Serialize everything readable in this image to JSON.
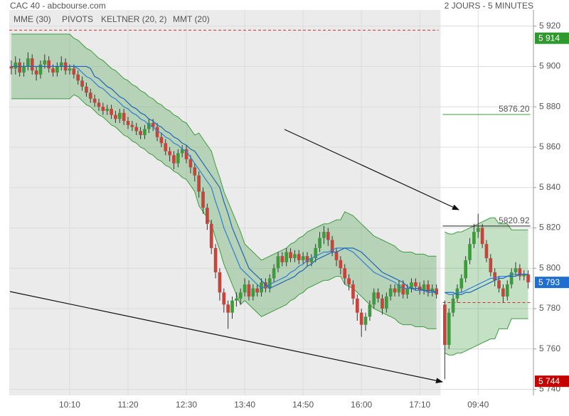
{
  "chart_data": {
    "type": "candlestick",
    "title": "CAC 40 - abcbourse.com",
    "subtitle": "2 JOURS - 5 MINUTES",
    "up_color": "#3d9a3d",
    "down_color": "#c5453c",
    "grid": true,
    "ylim": [
      5737,
      5928
    ],
    "yticks": [
      {
        "value": 5740,
        "label": "5 740"
      },
      {
        "value": 5760,
        "label": "5 760"
      },
      {
        "value": 5780,
        "label": "5 780"
      },
      {
        "value": 5800,
        "label": "5 800"
      },
      {
        "value": 5820,
        "label": "5 820"
      },
      {
        "value": 5840,
        "label": "5 840"
      },
      {
        "value": 5860,
        "label": "5 860"
      },
      {
        "value": 5880,
        "label": "5 880"
      },
      {
        "value": 5900,
        "label": "5 900"
      },
      {
        "value": 5920,
        "label": "5 920"
      }
    ],
    "categories": [
      null,
      null,
      null,
      null,
      null,
      null,
      null,
      null,
      null,
      null,
      null,
      null,
      null,
      null,
      "10:10",
      null,
      null,
      null,
      null,
      null,
      null,
      null,
      null,
      null,
      null,
      null,
      null,
      null,
      "11:20",
      null,
      null,
      null,
      null,
      null,
      null,
      null,
      null,
      null,
      null,
      null,
      null,
      null,
      "12:30",
      null,
      null,
      null,
      null,
      null,
      null,
      null,
      null,
      null,
      null,
      null,
      null,
      null,
      "13:40",
      null,
      null,
      null,
      null,
      null,
      null,
      null,
      null,
      null,
      null,
      null,
      null,
      null,
      "14:50",
      null,
      null,
      null,
      null,
      null,
      null,
      null,
      null,
      null,
      null,
      null,
      null,
      null,
      "16:00",
      null,
      null,
      null,
      null,
      null,
      null,
      null,
      null,
      null,
      null,
      null,
      null,
      null,
      "17:10",
      null,
      null,
      null,
      null,
      null,
      null,
      null,
      null,
      null,
      null,
      null,
      null,
      null,
      "09:40",
      null,
      null,
      null,
      null,
      null,
      null,
      null,
      null,
      null,
      null,
      null,
      null
    ],
    "open": [
      5900,
      5899,
      5902,
      5897,
      5900,
      5904,
      5898,
      5896,
      5901,
      5903,
      5899,
      5897,
      5900,
      5902,
      5898,
      5899,
      5896,
      5893,
      5890,
      5887,
      5884,
      5882,
      5880,
      5878,
      5879,
      5876,
      5874,
      5877,
      5873,
      5871,
      5870,
      5868,
      5866,
      5869,
      5872,
      5870,
      5865,
      5862,
      5858,
      5856,
      5852,
      5857,
      5859,
      5854,
      5850,
      5846,
      5838,
      5830,
      5822,
      5810,
      5798,
      5788,
      5782,
      5778,
      5784,
      5785,
      5788,
      5792,
      5786,
      5790,
      5788,
      5793,
      5790,
      5795,
      5800,
      5806,
      5803,
      5808,
      5805,
      5807,
      5804,
      5806,
      5803,
      5805,
      5810,
      5815,
      5818,
      5814,
      5808,
      5804,
      5800,
      5795,
      5792,
      5785,
      5778,
      5772,
      5776,
      5782,
      5788,
      5785,
      5780,
      5786,
      5790,
      5788,
      5792,
      5787,
      5790,
      5793,
      5791,
      5789,
      5792,
      5788,
      5790,
      null,
      5782,
      5762,
      5778,
      5785,
      5790,
      5795,
      5804,
      5812,
      5818,
      5820,
      5812,
      5805,
      5798,
      5794,
      5790,
      5786,
      5792,
      5798,
      5800,
      5796,
      5797
    ],
    "high": [
      5903,
      5905,
      5904,
      5902,
      5907,
      5906,
      5900,
      5903,
      5906,
      5905,
      5901,
      5902,
      5905,
      5904,
      5901,
      5901,
      5898,
      5895,
      5892,
      5889,
      5886,
      5884,
      5882,
      5881,
      5881,
      5878,
      5879,
      5879,
      5875,
      5873,
      5872,
      5870,
      5871,
      5874,
      5874,
      5872,
      5867,
      5864,
      5860,
      5858,
      5859,
      5861,
      5861,
      5856,
      5852,
      5848,
      5840,
      5832,
      5824,
      5812,
      5800,
      5790,
      5784,
      5786,
      5788,
      5790,
      5795,
      5794,
      5792,
      5792,
      5795,
      5795,
      5797,
      5802,
      5808,
      5808,
      5810,
      5810,
      5809,
      5809,
      5808,
      5808,
      5807,
      5812,
      5818,
      5821,
      5820,
      5816,
      5810,
      5806,
      5802,
      5797,
      5794,
      5787,
      5780,
      5778,
      5784,
      5790,
      5790,
      5787,
      5788,
      5792,
      5792,
      5794,
      5794,
      5792,
      5795,
      5795,
      5793,
      5794,
      5794,
      5792,
      5792,
      null,
      5784,
      5780,
      5787,
      5792,
      5797,
      5806,
      5815,
      5822,
      5827,
      5822,
      5814,
      5807,
      5800,
      5796,
      5792,
      5794,
      5800,
      5803,
      5802,
      5799,
      5799
    ],
    "low": [
      5896,
      5896,
      5895,
      5895,
      5898,
      5896,
      5893,
      5894,
      5899,
      5897,
      5895,
      5895,
      5898,
      5896,
      5896,
      5894,
      5891,
      5888,
      5885,
      5882,
      5880,
      5878,
      5876,
      5876,
      5874,
      5872,
      5872,
      5871,
      5869,
      5868,
      5866,
      5864,
      5864,
      5867,
      5868,
      5863,
      5860,
      5856,
      5853,
      5849,
      5850,
      5855,
      5852,
      5847,
      5843,
      5835,
      5827,
      5819,
      5807,
      5795,
      5784,
      5778,
      5770,
      5775,
      5781,
      5782,
      5786,
      5784,
      5784,
      5786,
      5786,
      5788,
      5788,
      5793,
      5798,
      5801,
      5801,
      5803,
      5803,
      5802,
      5802,
      5801,
      5801,
      5803,
      5808,
      5812,
      5811,
      5806,
      5801,
      5797,
      5792,
      5789,
      5782,
      5774,
      5766,
      5769,
      5774,
      5780,
      5783,
      5777,
      5778,
      5784,
      5786,
      5786,
      5785,
      5785,
      5788,
      5789,
      5787,
      5787,
      5786,
      5786,
      5785,
      null,
      5745,
      5760,
      5776,
      5783,
      5788,
      5793,
      5802,
      5810,
      5815,
      5810,
      5803,
      5796,
      5791,
      5788,
      5783,
      5784,
      5790,
      5796,
      5794,
      5794,
      5790
    ],
    "close": [
      5899,
      5902,
      5897,
      5900,
      5904,
      5898,
      5896,
      5901,
      5903,
      5899,
      5897,
      5900,
      5902,
      5898,
      5899,
      5896,
      5893,
      5890,
      5887,
      5884,
      5882,
      5880,
      5878,
      5879,
      5876,
      5874,
      5877,
      5873,
      5871,
      5870,
      5868,
      5866,
      5869,
      5872,
      5870,
      5865,
      5862,
      5858,
      5856,
      5852,
      5857,
      5859,
      5854,
      5850,
      5846,
      5838,
      5830,
      5822,
      5810,
      5798,
      5788,
      5782,
      5778,
      5784,
      5785,
      5788,
      5792,
      5786,
      5790,
      5788,
      5793,
      5790,
      5795,
      5800,
      5806,
      5803,
      5808,
      5805,
      5807,
      5804,
      5806,
      5803,
      5805,
      5810,
      5815,
      5818,
      5814,
      5808,
      5804,
      5800,
      5795,
      5792,
      5785,
      5778,
      5772,
      5776,
      5782,
      5788,
      5785,
      5780,
      5786,
      5790,
      5788,
      5792,
      5787,
      5790,
      5793,
      5791,
      5789,
      5792,
      5788,
      5790,
      5787,
      null,
      5762,
      5778,
      5785,
      5790,
      5795,
      5804,
      5812,
      5818,
      5820,
      5812,
      5805,
      5798,
      5794,
      5790,
      5786,
      5792,
      5798,
      5800,
      5796,
      5797,
      5793
    ],
    "indicators": {
      "mme": {
        "name": "MME (30)",
        "color": "#1f64b8",
        "values": [
          5900,
          5900,
          5900,
          5900,
          5900,
          5900,
          5900,
          5900,
          5900,
          5900,
          5900,
          5900,
          5900,
          5900,
          5900,
          5900,
          5900,
          5900,
          5900,
          5899,
          5895,
          5894,
          5892,
          5890,
          5889,
          5887,
          5885,
          5884,
          5882,
          5880,
          5879,
          5877,
          5876,
          5874,
          5873,
          5871,
          5870,
          5868,
          5867,
          5865,
          5864,
          5862,
          5861,
          5859,
          5858,
          5855,
          5852,
          5849,
          5846,
          5843,
          5840,
          5833,
          5827,
          5820,
          5815,
          5810,
          5805,
          5800,
          5798,
          5796,
          5794,
          5792,
          5790,
          5791,
          5792,
          5793,
          5794,
          5795,
          5796,
          5798,
          5799,
          5801,
          5802,
          5804,
          5805,
          5806,
          5807,
          5808,
          5808,
          5809,
          5810,
          5810,
          5810,
          5809,
          5808,
          5806,
          5804,
          5802,
          5800,
          5798,
          5797,
          5796,
          5795,
          5794,
          5793,
          5791,
          5790,
          5790,
          5790,
          5789,
          5789,
          5789,
          5788,
          null,
          5788,
          5788,
          5788,
          5787,
          5787,
          5788,
          5788,
          5789,
          5790,
          5791,
          5792,
          5793,
          5794,
          5795,
          5795,
          5796,
          5796,
          5796,
          5797,
          5797,
          5797
        ]
      },
      "pivots": {
        "name": "PIVOTS",
        "color": "#d03030",
        "values": [
          5918,
          5783
        ]
      },
      "keltner": {
        "name": "KELTNER (20, 2)",
        "color": "#3e9b3e",
        "upper": [
          5916,
          5916,
          5916,
          5916,
          5916,
          5916,
          5916,
          5916,
          5916,
          5916,
          5916,
          5916,
          5916,
          5916,
          5916,
          5914,
          5913,
          5911,
          5909,
          5908,
          5906,
          5904,
          5903,
          5901,
          5899,
          5898,
          5896,
          5894,
          5893,
          5891,
          5890,
          5888,
          5887,
          5885,
          5884,
          5882,
          5881,
          5879,
          5878,
          5876,
          5875,
          5873,
          5872,
          5869,
          5866,
          5867,
          5864,
          5861,
          5858,
          5851,
          5845,
          5838,
          5833,
          5828,
          5823,
          5818,
          5812,
          5810,
          5808,
          5806,
          5804,
          5805,
          5806,
          5807,
          5808,
          5809,
          5810,
          5812,
          5813,
          5815,
          5816,
          5818,
          5819,
          5820,
          5821,
          5822,
          5822,
          5823,
          5824,
          5824,
          5828,
          5827,
          5826,
          5824,
          5822,
          5820,
          5818,
          5816,
          5815,
          5814,
          5813,
          5812,
          5811,
          5809,
          5808,
          5808,
          5808,
          5807,
          5807,
          5807,
          5806,
          5806,
          5806,
          null,
          5818,
          5817,
          5817,
          5818,
          5818,
          5819,
          5820,
          5821,
          5822,
          5823,
          5824,
          5825,
          5825,
          5822,
          5822,
          5822,
          5819,
          5819,
          5819,
          5819,
          5819
        ],
        "lower": [
          5884,
          5884,
          5884,
          5884,
          5884,
          5884,
          5884,
          5884,
          5884,
          5884,
          5884,
          5884,
          5884,
          5884,
          5884,
          5886,
          5885,
          5883,
          5881,
          5880,
          5878,
          5876,
          5875,
          5873,
          5871,
          5870,
          5868,
          5866,
          5865,
          5863,
          5862,
          5860,
          5859,
          5857,
          5856,
          5854,
          5853,
          5851,
          5850,
          5848,
          5847,
          5845,
          5844,
          5841,
          5838,
          5831,
          5828,
          5825,
          5822,
          5815,
          5809,
          5802,
          5797,
          5792,
          5787,
          5782,
          5784,
          5782,
          5780,
          5778,
          5776,
          5777,
          5778,
          5779,
          5780,
          5781,
          5782,
          5784,
          5785,
          5787,
          5788,
          5790,
          5791,
          5792,
          5793,
          5794,
          5794,
          5795,
          5796,
          5796,
          5792,
          5791,
          5790,
          5788,
          5786,
          5784,
          5782,
          5780,
          5779,
          5778,
          5777,
          5776,
          5775,
          5773,
          5772,
          5772,
          5772,
          5771,
          5771,
          5771,
          5770,
          5770,
          5770,
          null,
          5758,
          5757,
          5757,
          5758,
          5758,
          5759,
          5760,
          5761,
          5762,
          5763,
          5764,
          5765,
          5765,
          5770,
          5770,
          5770,
          5775,
          5775,
          5775,
          5775,
          5775
        ]
      },
      "mmt": {
        "name": "MMT (20)",
        "color": "#2f7fd6",
        "values": [
          5900,
          5900,
          5900,
          5900,
          5900,
          5900,
          5900,
          5900,
          5900,
          5900,
          5900,
          5900,
          5900,
          5900,
          5900,
          5900,
          5899,
          5897,
          5895,
          5894,
          5892,
          5890,
          5889,
          5887,
          5885,
          5884,
          5882,
          5880,
          5879,
          5877,
          5876,
          5874,
          5873,
          5871,
          5870,
          5868,
          5867,
          5865,
          5864,
          5862,
          5861,
          5859,
          5858,
          5855,
          5852,
          5849,
          5846,
          5843,
          5840,
          5833,
          5827,
          5820,
          5815,
          5810,
          5805,
          5800,
          5798,
          5796,
          5794,
          5792,
          5790,
          5791,
          5792,
          5793,
          5794,
          5795,
          5796,
          5798,
          5799,
          5801,
          5802,
          5804,
          5805,
          5806,
          5807,
          5808,
          5808,
          5809,
          5810,
          5810,
          5810,
          5809,
          5808,
          5806,
          5804,
          5802,
          5800,
          5798,
          5797,
          5796,
          5795,
          5794,
          5793,
          5791,
          5790,
          5790,
          5790,
          5789,
          5789,
          5789,
          5788,
          5788,
          5788,
          null,
          5788,
          5787,
          5787,
          5788,
          5788,
          5789,
          5790,
          5791,
          5792,
          5793,
          5794,
          5795,
          5795,
          5796,
          5796,
          5796,
          5797,
          5797,
          5797,
          5797,
          5797
        ]
      }
    },
    "levels": [
      {
        "value": 5876.2,
        "label": "5876.20",
        "color": "#3e9b3e"
      },
      {
        "value": 5820.92,
        "label": "5820.92",
        "color": "#222222"
      }
    ],
    "price_tags": [
      {
        "value": 5914,
        "label": "5 914",
        "color": "#2e9a2e"
      },
      {
        "value": 5793,
        "label": "5 793",
        "color": "#1f6fd0"
      },
      {
        "value": 5744,
        "label": "5 744",
        "color": "#c40000"
      }
    ]
  }
}
